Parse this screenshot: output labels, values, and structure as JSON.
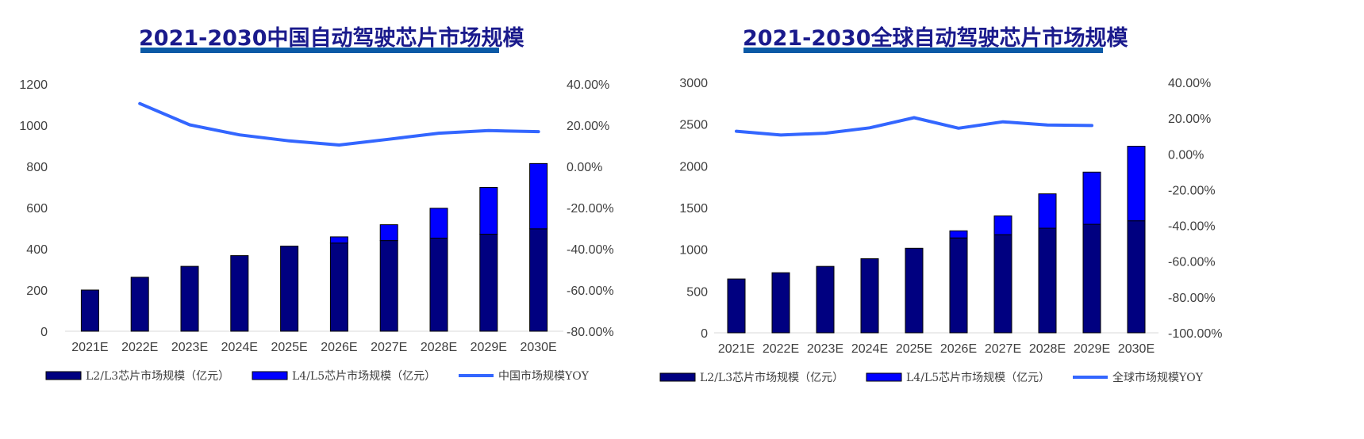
{
  "chart_data": [
    {
      "type": "bar",
      "title": "2021-2030中国自动驾驶芯片市场规模",
      "categories": [
        "2021E",
        "2022E",
        "2023E",
        "2024E",
        "2025E",
        "2026E",
        "2027E",
        "2028E",
        "2029E",
        "2030E"
      ],
      "series": [
        {
          "name": "L2/L3芯片市场规模（亿元）",
          "kind": "bar",
          "stack": true,
          "color": "#000080",
          "values": [
            200,
            262,
            315,
            367,
            413,
            428,
            440,
            452,
            471,
            497
          ]
        },
        {
          "name": "L4/L5芯片市场规模（亿元）",
          "kind": "bar",
          "stack": true,
          "color": "#0000ff",
          "values": [
            0,
            0,
            0,
            0,
            0,
            30,
            77,
            145,
            227,
            317
          ]
        },
        {
          "name": "中国市场规模YOY",
          "kind": "line",
          "axis": "right",
          "color": "#3366ff",
          "values": [
            null,
            30.5,
            20.2,
            15.3,
            12.4,
            10.4,
            13.2,
            16.1,
            17.4,
            16.9
          ]
        }
      ],
      "y_left": {
        "ticks": [
          "0",
          "200",
          "400",
          "600",
          "800",
          "1000",
          "1200"
        ],
        "min": 0,
        "max": 1200
      },
      "y_right": {
        "ticks": [
          "-80.00%",
          "-60.00%",
          "-40.00%",
          "-20.00%",
          "0.00%",
          "20.00%",
          "40.00%"
        ],
        "min": -80,
        "max": 40
      },
      "grid": false,
      "legend_position": "bottom"
    },
    {
      "type": "bar",
      "title": "2021-2030全球自动驾驶芯片市场规模",
      "categories": [
        "2021E",
        "2022E",
        "2023E",
        "2024E",
        "2025E",
        "2026E",
        "2027E",
        "2028E",
        "2029E",
        "2030E"
      ],
      "series": [
        {
          "name": "L2/L3芯片市场规模（亿元）",
          "kind": "bar",
          "stack": true,
          "color": "#000080",
          "values": [
            645,
            720,
            796,
            888,
            1013,
            1137,
            1176,
            1253,
            1300,
            1342
          ]
        },
        {
          "name": "L4/L5芯片市场规模（亿元）",
          "kind": "bar",
          "stack": true,
          "color": "#0000ff",
          "values": [
            0,
            0,
            0,
            0,
            0,
            85,
            225,
            412,
            625,
            893
          ]
        },
        {
          "name": "全球市场规模YOY",
          "kind": "line",
          "axis": "right",
          "color": "#3366ff",
          "values": [
            12.7,
            10.6,
            11.6,
            14.6,
            20.3,
            14.4,
            18.0,
            16.2,
            15.9,
            null
          ]
        }
      ],
      "y_left": {
        "ticks": [
          "0",
          "500",
          "1000",
          "1500",
          "2000",
          "2500",
          "3000"
        ],
        "min": 0,
        "max": 3000
      },
      "y_right": {
        "ticks": [
          "-100.00%",
          "-80.00%",
          "-60.00%",
          "-40.00%",
          "-20.00%",
          "0.00%",
          "20.00%",
          "40.00%"
        ],
        "min": -100,
        "max": 40
      },
      "grid": false,
      "legend_position": "bottom"
    }
  ]
}
